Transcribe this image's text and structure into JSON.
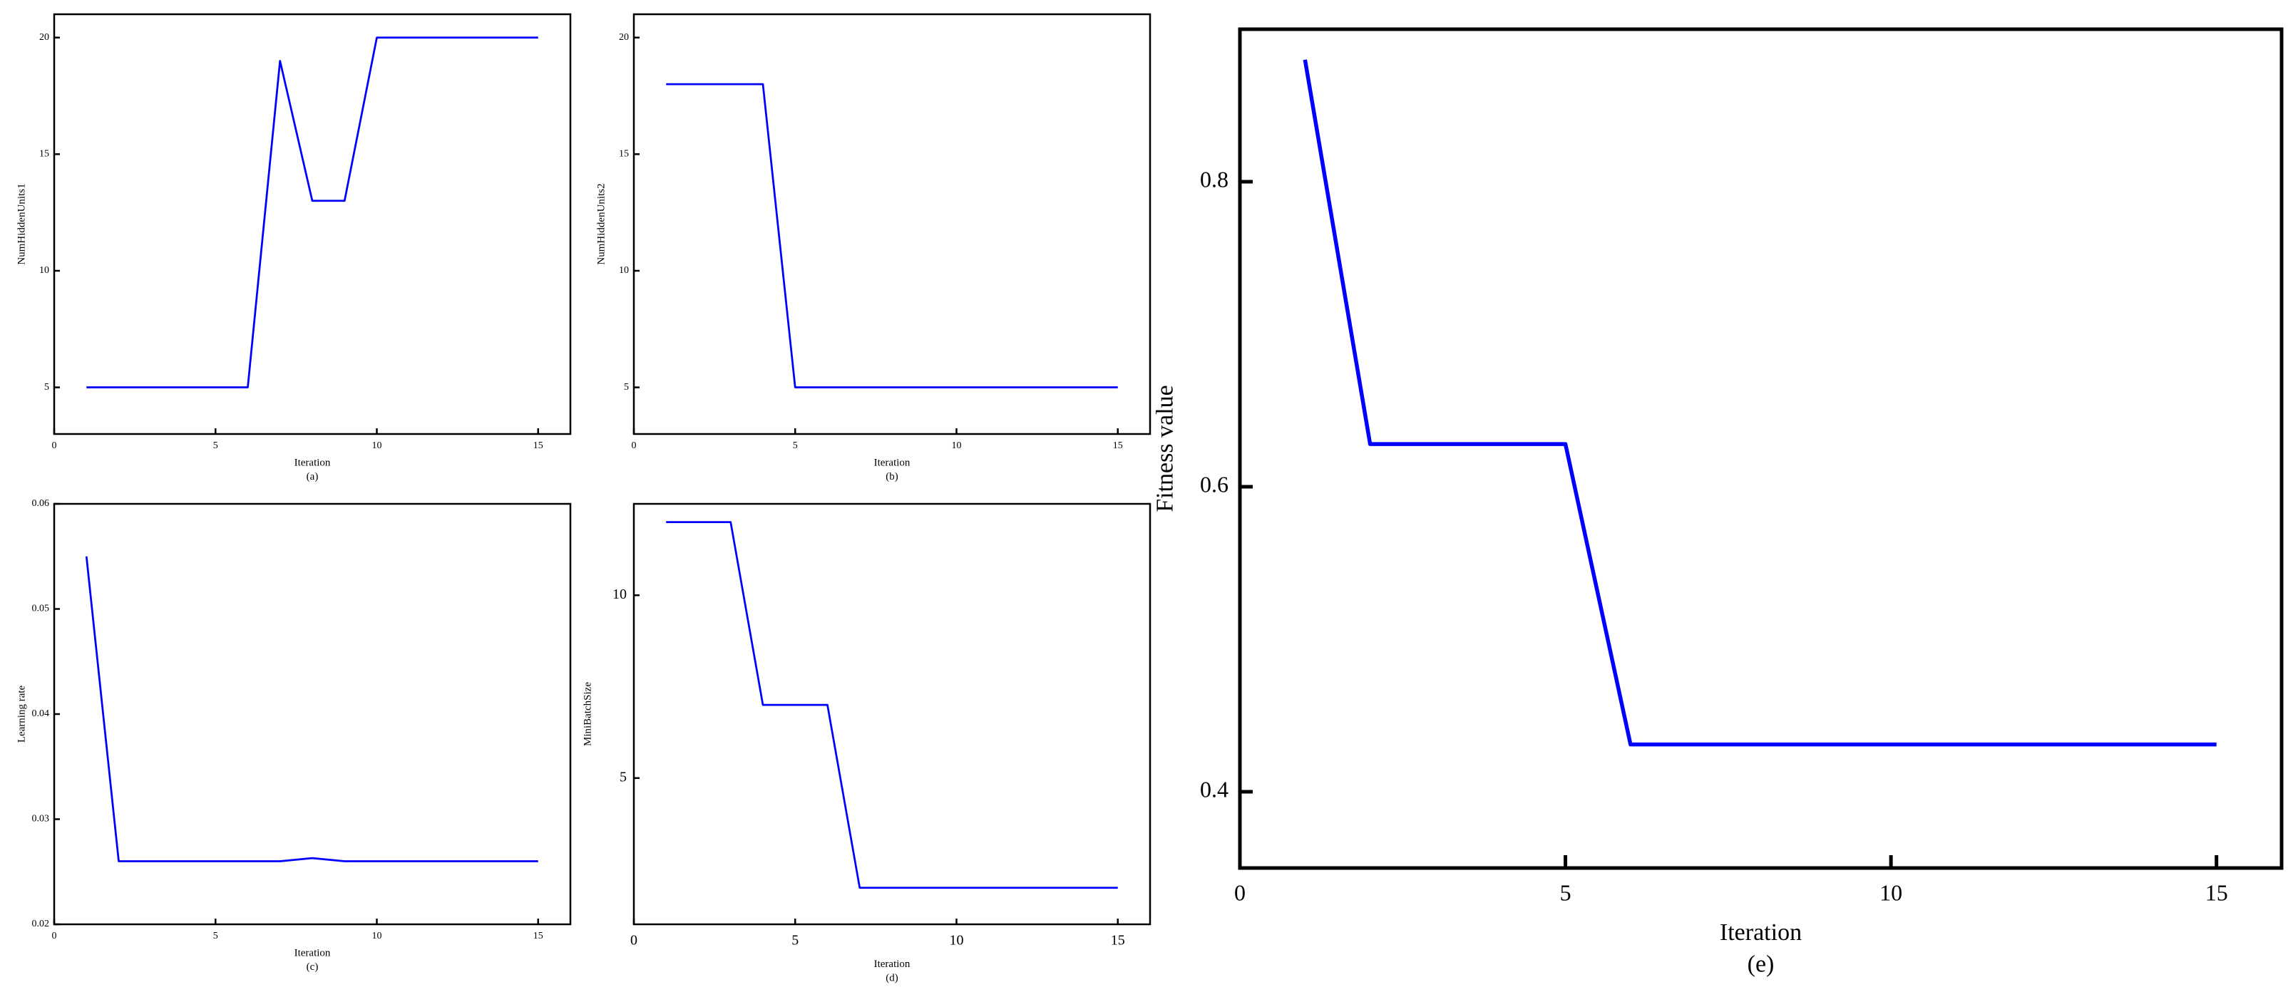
{
  "chart_data": [
    {
      "type": "line",
      "xlabel": "Iteration",
      "caption": "(a)",
      "ylabel": "NumHiddenUnits1",
      "x": [
        1,
        2,
        3,
        4,
        5,
        6,
        7,
        8,
        9,
        10,
        11,
        12,
        13,
        14,
        15
      ],
      "values": [
        5,
        5,
        5,
        5,
        5,
        5,
        19,
        13,
        13,
        20,
        20,
        20,
        20,
        20,
        20
      ],
      "color": "#0000ff",
      "xlim": [
        0,
        16
      ],
      "xticks": [
        0,
        5,
        10,
        15
      ],
      "ylim": [
        3,
        21
      ],
      "yticks": [
        5,
        10,
        15,
        20
      ]
    },
    {
      "type": "line",
      "xlabel": "Iteration",
      "caption": "(b)",
      "ylabel": "NumHiddenUnits2",
      "x": [
        1,
        2,
        3,
        4,
        5,
        6,
        7,
        8,
        9,
        10,
        11,
        12,
        13,
        14,
        15
      ],
      "values": [
        18,
        18,
        18,
        18,
        5,
        5,
        5,
        5,
        5,
        5,
        5,
        5,
        5,
        5,
        5
      ],
      "color": "#0000ff",
      "xlim": [
        0,
        16
      ],
      "xticks": [
        0,
        5,
        10,
        15
      ],
      "ylim": [
        3,
        21
      ],
      "yticks": [
        5,
        10,
        15,
        20
      ]
    },
    {
      "type": "line",
      "xlabel": "Iteration",
      "caption": "(c)",
      "ylabel": "Learning rate",
      "x": [
        1,
        2,
        3,
        4,
        5,
        6,
        7,
        8,
        9,
        10,
        11,
        12,
        13,
        14,
        15
      ],
      "values": [
        0.055,
        0.026,
        0.026,
        0.026,
        0.026,
        0.026,
        0.026,
        0.0263,
        0.026,
        0.026,
        0.026,
        0.026,
        0.026,
        0.026,
        0.026
      ],
      "color": "#0000ff",
      "xlim": [
        0,
        16
      ],
      "xticks": [
        0,
        5,
        10,
        15
      ],
      "ylim": [
        0.02,
        0.06
      ],
      "yticks": [
        0.02,
        0.03,
        0.04,
        0.05,
        0.06
      ]
    },
    {
      "type": "line",
      "xlabel": "Iteration",
      "caption": "(d)",
      "ylabel": "MiniBatchSize",
      "x": [
        1,
        2,
        3,
        4,
        5,
        6,
        7,
        8,
        9,
        10,
        11,
        12,
        13,
        14,
        15
      ],
      "values": [
        12,
        12,
        12,
        7,
        7,
        7,
        2,
        2,
        2,
        2,
        2,
        2,
        2,
        2,
        2
      ],
      "color": "#0000ff",
      "xlim": [
        0,
        16
      ],
      "xticks": [
        0,
        5,
        10,
        15
      ],
      "ylim": [
        1,
        12.5
      ],
      "yticks": [
        5,
        10
      ]
    },
    {
      "type": "line",
      "xlabel": "Iteration",
      "caption": "(e)",
      "ylabel": "Fitness value",
      "x": [
        1,
        2,
        3,
        4,
        5,
        6,
        7,
        8,
        9,
        10,
        11,
        12,
        13,
        14,
        15
      ],
      "values": [
        0.88,
        0.628,
        0.628,
        0.628,
        0.628,
        0.431,
        0.431,
        0.431,
        0.431,
        0.431,
        0.431,
        0.431,
        0.431,
        0.431,
        0.431
      ],
      "color": "#0000ff",
      "xlim": [
        0,
        16
      ],
      "xticks": [
        0,
        5,
        10,
        15
      ],
      "ylim": [
        0.35,
        0.9
      ],
      "yticks": [
        0.4,
        0.6,
        0.8
      ]
    }
  ]
}
